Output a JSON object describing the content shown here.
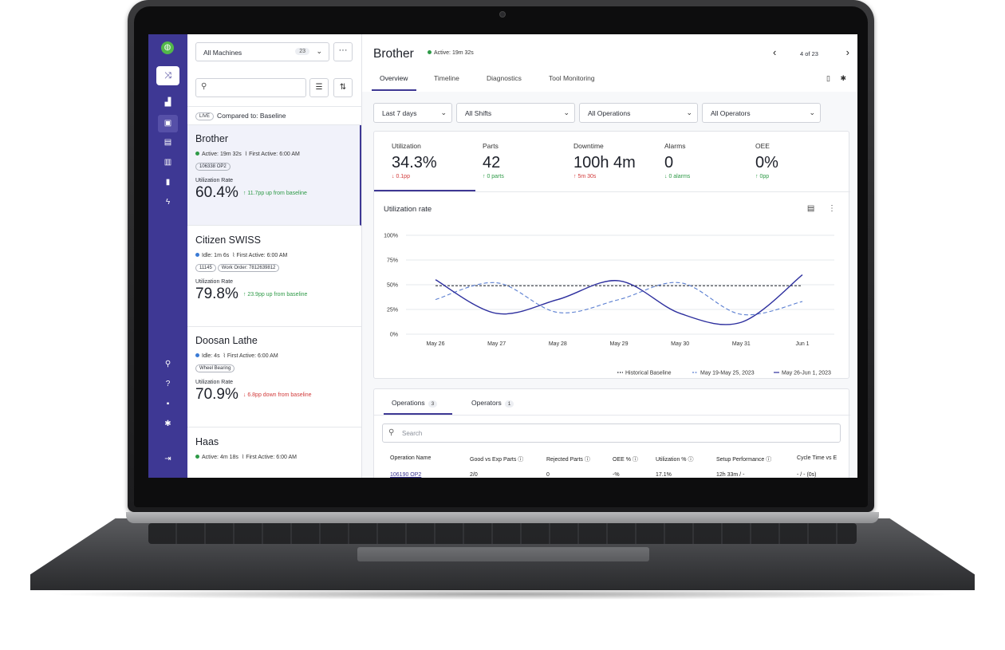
{
  "nav": {
    "logo_glyph": "◍",
    "items": [
      "shuffle-icon",
      "area-chart-icon",
      "monitor-icon",
      "calendar-icon",
      "report-icon",
      "bar-chart-icon",
      "lightning-icon",
      "search-icon",
      "help-icon",
      "lock-icon",
      "gear-icon",
      "logout-icon"
    ]
  },
  "list": {
    "selector_label": "All Machines",
    "selector_count": "23",
    "compare_live": "LIVE",
    "compare_text": "Compared to: Baseline",
    "machines": [
      {
        "name": "Brother",
        "status": "Active: 19m 32s",
        "status_color": "#2e9a47",
        "first_active": "First Active: 6:00 AM",
        "tags": [
          "106338 OP2"
        ],
        "rate_label": "Utilization Rate",
        "rate": "60.4%",
        "delta": "↑ 11.7pp up from baseline",
        "delta_dir": "up"
      },
      {
        "name": "Citizen SWISS",
        "status": "Idle: 1m 6s",
        "status_color": "#3a7bd5",
        "first_active": "First Active: 6:00 AM",
        "tags": [
          "11145",
          "Work Order: 7812639812"
        ],
        "rate_label": "Utilization Rate",
        "rate": "79.8%",
        "delta": "↑ 23.9pp up from baseline",
        "delta_dir": "up"
      },
      {
        "name": "Doosan Lathe",
        "status": "Idle: 4s",
        "status_color": "#3a7bd5",
        "first_active": "First Active: 6:00 AM",
        "tags": [
          "Wheel Bearing"
        ],
        "rate_label": "Utilization Rate",
        "rate": "70.9%",
        "delta": "↓ 6.8pp down from baseline",
        "delta_dir": "down"
      },
      {
        "name": "Haas",
        "status": "Active: 4m 18s",
        "status_color": "#2e9a47",
        "first_active": "First Active: 6:00 AM",
        "tags": [],
        "rate_label": "",
        "rate": "",
        "delta": "",
        "delta_dir": "up"
      }
    ]
  },
  "header": {
    "title": "Brother",
    "status": "Active: 19m 32s",
    "pager": "4 of 23",
    "tabs": [
      "Overview",
      "Timeline",
      "Diagnostics",
      "Tool Monitoring"
    ]
  },
  "filters": [
    "Last 7 days",
    "All Shifts",
    "All Operations",
    "All Operators"
  ],
  "kpis": [
    {
      "label": "Utilization",
      "value": "34.3%",
      "sub": "↓ 0.1pp",
      "dir": "down"
    },
    {
      "label": "Parts",
      "value": "42",
      "sub": "↑ 0 parts",
      "dir": "up"
    },
    {
      "label": "Downtime",
      "value": "100h 4m",
      "sub": "↑ 5m 30s",
      "dir": "down"
    },
    {
      "label": "Alarms",
      "value": "0",
      "sub": "↓ 0 alarms",
      "dir": "up"
    },
    {
      "label": "OEE",
      "value": "0%",
      "sub": "↑ 0pp",
      "dir": "up"
    }
  ],
  "chart_data": {
    "type": "line",
    "title": "Utilization rate",
    "categories": [
      "May 26",
      "May 27",
      "May 28",
      "May 29",
      "May 30",
      "May 31",
      "Jun 1"
    ],
    "y_ticks": [
      "100%",
      "75%",
      "50%",
      "25%",
      "0%"
    ],
    "ylim": [
      0,
      100
    ],
    "series": [
      {
        "name": "Historical Baseline",
        "style": "dotted",
        "color": "#1d2029",
        "values": [
          49,
          49,
          49,
          49,
          49,
          49,
          49
        ]
      },
      {
        "name": "May 19-May 25, 2023",
        "style": "dashed",
        "color": "#5b7fd1",
        "values": [
          35,
          52,
          22,
          35,
          52,
          20,
          33
        ]
      },
      {
        "name": "May 26-Jun 1, 2023",
        "style": "solid",
        "color": "#2d2f9e",
        "values": [
          55,
          21,
          35,
          54,
          21,
          12,
          60
        ]
      }
    ],
    "legend": "bottom-right"
  },
  "ops": {
    "tabs": [
      {
        "label": "Operations",
        "count": "3"
      },
      {
        "label": "Operators",
        "count": "1"
      }
    ],
    "search_placeholder": "Search",
    "columns": [
      "Operation Name",
      "Good vs Exp Parts ⓘ",
      "Rejected Parts ⓘ",
      "OEE % ⓘ",
      "Utilization % ⓘ",
      "Setup Performance ⓘ",
      "Cycle Time vs E"
    ],
    "rows": [
      [
        "106190 OP2",
        "2/0",
        "0",
        "-%",
        "17.1%",
        "12h 33m / -",
        "- / - (0s)"
      ]
    ]
  }
}
